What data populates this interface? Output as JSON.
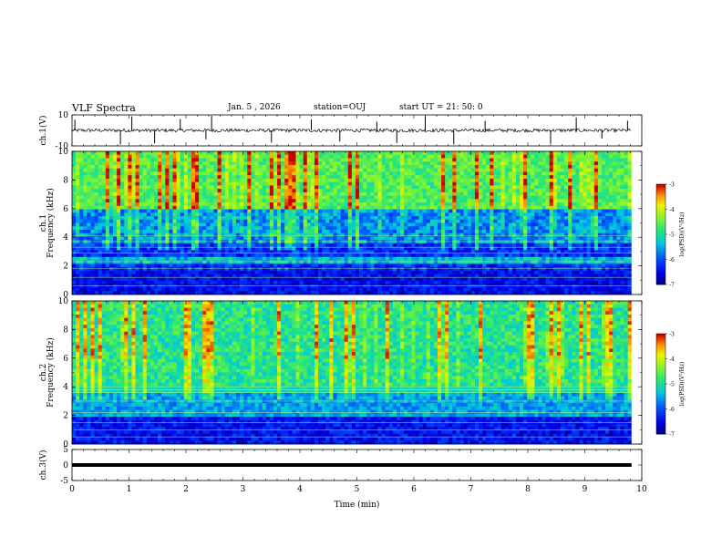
{
  "header": {
    "title": "VLF Spectra",
    "date": "Jan. 5 , 2026",
    "station": "station=OUJ",
    "start": "start UT =  21: 50: 0"
  },
  "chart_data": {
    "type": "heatmap",
    "title": "VLF Spectra",
    "xlabel": "Time (min)",
    "xlim": [
      0,
      10
    ],
    "x_ticks": [
      "0",
      "1",
      "2",
      "3",
      "4",
      "5",
      "6",
      "7",
      "8",
      "9",
      "10"
    ],
    "panels": [
      {
        "name": "ch1-waveform",
        "type": "line",
        "ylabel": "ch.1(V)",
        "ylim": [
          -10,
          10
        ],
        "y_ticks": [
          "10",
          "-10"
        ],
        "data_end_min": 9.82,
        "baseline_v": 0,
        "spike_minutes": [
          0.05,
          0.85,
          1.05,
          1.45,
          1.9,
          2.35,
          2.45,
          3.5,
          4.2,
          4.7,
          5.35,
          5.7,
          6.2,
          6.7,
          7.25,
          8.4,
          8.85,
          9.3,
          9.75
        ]
      },
      {
        "name": "ch1-spectrogram",
        "type": "heatmap",
        "ylabel": "ch.1\nFrequency (kHz)",
        "ylim": [
          0,
          10
        ],
        "y_ticks": [
          "0",
          "2",
          "4",
          "6",
          "8",
          "10"
        ],
        "data_end_min": 9.82,
        "colorbar": {
          "label": "log(PSD)(V²/Hz)",
          "range": [
            -7,
            -3
          ],
          "ticks": [
            "-3",
            "-4",
            "-5",
            "-6",
            "-7"
          ]
        }
      },
      {
        "name": "ch2-spectrogram",
        "type": "heatmap",
        "ylabel": "ch.2\nFrequency (kHz)",
        "ylim": [
          0,
          10
        ],
        "y_ticks": [
          "0",
          "2",
          "4",
          "6",
          "8",
          "10"
        ],
        "data_end_min": 9.82,
        "colorbar": {
          "label": "log(PSD)(V²/Hz)",
          "range": [
            -7,
            -3
          ],
          "ticks": [
            "-3",
            "-4",
            "-5",
            "-6",
            "-7"
          ]
        }
      },
      {
        "name": "ch3-waveform",
        "type": "line",
        "ylabel": "ch.3(V)",
        "ylim": [
          -5,
          5
        ],
        "y_ticks": [
          "5",
          "0",
          "-5"
        ],
        "data_end_min": 9.82,
        "baseline_v": 0
      }
    ]
  }
}
